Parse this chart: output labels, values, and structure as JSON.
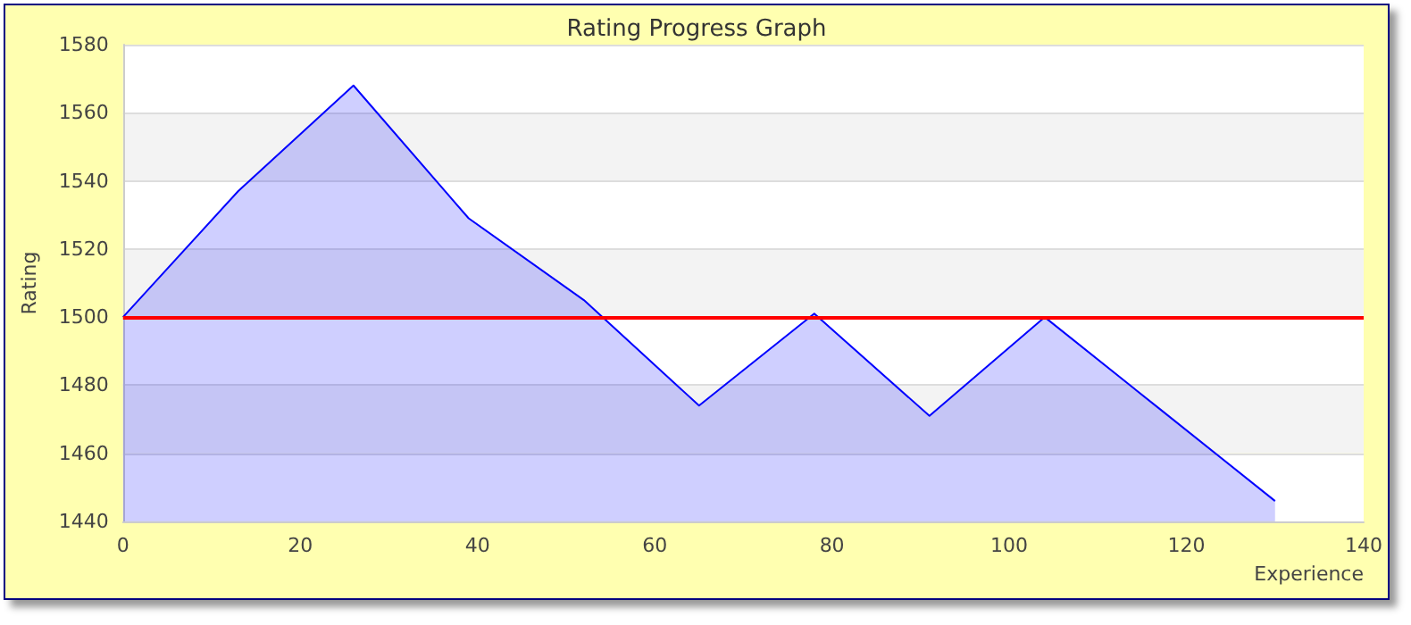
{
  "chart_data": {
    "type": "area",
    "title": "Rating Progress Graph",
    "xlabel": "Experience",
    "ylabel": "Rating",
    "x": [
      0,
      13,
      26,
      39,
      52,
      65,
      78,
      91,
      104,
      117,
      130
    ],
    "series": [
      {
        "color": "#0000ff",
        "values": [
          1500,
          1537,
          1568,
          1529,
          1505,
          1474,
          1501,
          1471,
          1500,
          1473,
          1446
        ]
      }
    ],
    "xlim": [
      0,
      140
    ],
    "xticks": [
      0,
      20,
      40,
      60,
      80,
      100,
      120,
      140
    ],
    "ylim": [
      1440,
      1580
    ],
    "yticks": [
      1440,
      1460,
      1480,
      1500,
      1520,
      1540,
      1560,
      1580
    ],
    "ref_lines": [
      {
        "axis": "y",
        "value": 1500,
        "color": "#ff0000"
      }
    ],
    "grid": "y"
  }
}
